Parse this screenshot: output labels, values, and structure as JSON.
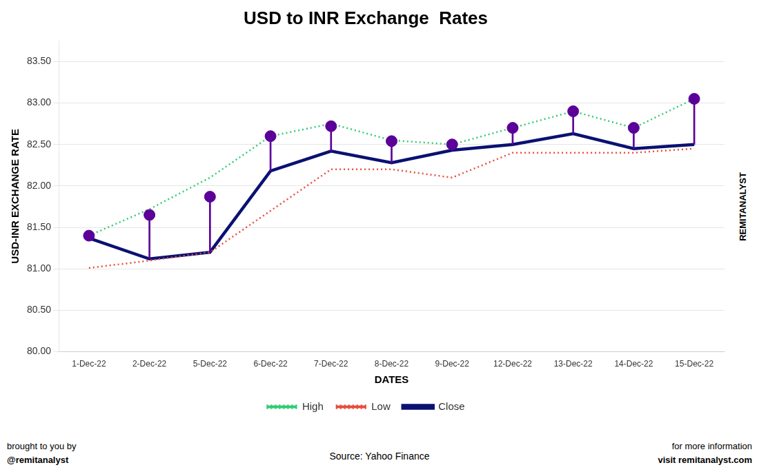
{
  "chart_data": {
    "type": "line",
    "title": "USD to INR Exchange  Rates",
    "x_label": "DATES",
    "y_label": "USD-INR EXCHANGE RATE",
    "categories": [
      "1-Dec-22",
      "2-Dec-22",
      "5-Dec-22",
      "6-Dec-22",
      "7-Dec-22",
      "8-Dec-22",
      "9-Dec-22",
      "12-Dec-22",
      "13-Dec-22",
      "14-Dec-22",
      "15-Dec-22"
    ],
    "series": [
      {
        "name": "High",
        "color": "#2ecc71",
        "line_style": "dotted",
        "values": [
          81.4,
          81.72,
          82.1,
          82.6,
          82.75,
          82.55,
          82.5,
          82.7,
          82.9,
          82.7,
          83.05
        ]
      },
      {
        "name": "Low",
        "color": "#e74c3c",
        "line_style": "dotted",
        "values": [
          81.01,
          81.1,
          81.2,
          81.7,
          82.2,
          82.2,
          82.1,
          82.4,
          82.4,
          82.4,
          82.45
        ]
      },
      {
        "name": "Close",
        "color": "#0a1172",
        "line_style": "solid",
        "values": [
          81.37,
          81.12,
          81.2,
          82.18,
          82.42,
          82.28,
          82.43,
          82.5,
          82.63,
          82.45,
          82.5
        ]
      },
      {
        "type": "scatter",
        "color": "#5b0099",
        "marker": "circle",
        "line_style": "stem",
        "values": [
          81.4,
          81.65,
          81.87,
          82.6,
          82.72,
          82.54,
          82.5,
          82.7,
          82.9,
          82.7,
          83.05
        ]
      }
    ],
    "ylim": [
      80.0,
      83.75
    ],
    "yticks": [
      {
        "value": 80.0,
        "label": "80.00"
      },
      {
        "value": 80.5,
        "label": "80.50"
      },
      {
        "value": 81.0,
        "label": "81.00"
      },
      {
        "value": 81.5,
        "label": "81.50"
      },
      {
        "value": 82.0,
        "label": "82.00"
      },
      {
        "value": 82.5,
        "label": "82.50"
      },
      {
        "value": 83.0,
        "label": "83.00"
      },
      {
        "value": 83.5,
        "label": "83.50"
      }
    ],
    "grid": "y",
    "legend": "bottom",
    "annotations": [
      "REMITANALYST",
      "brought to you by",
      "@remitanalyst",
      "Source: Yahoo Finance",
      "for more information",
      "visit remitanalyst.com"
    ]
  }
}
